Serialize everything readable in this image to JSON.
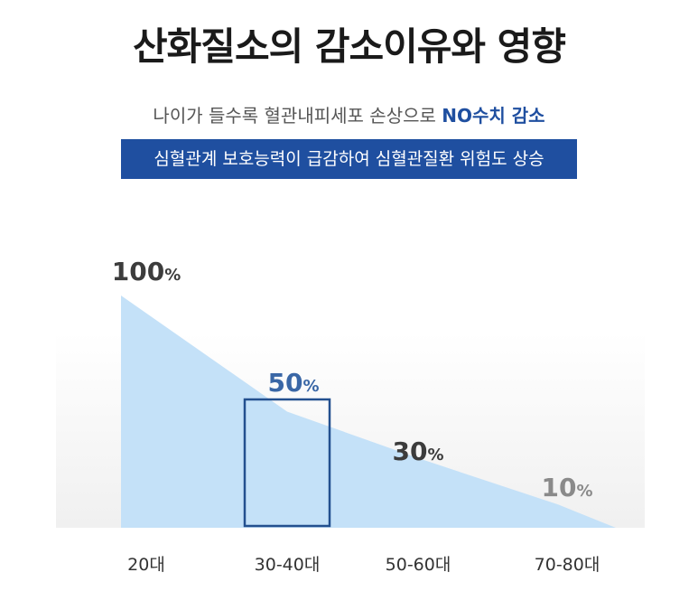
{
  "header": {
    "title": "산화질소의 감소이유와 영향",
    "subtitle_main": "나이가 들수록 혈관내피세포 손상으로 ",
    "subtitle_highlight": "NO수치 감소",
    "banner": "심혈관계 보호능력이 급감하여 심혈관질환 위험도 상승"
  },
  "colors": {
    "title": "#1a1a1a",
    "accent": "#1f4fa0",
    "area_fill": "#c4e1f8",
    "highlight_box": "#23508f",
    "label_dark": "#3c3c3c",
    "label_blue": "#3a67a6",
    "label_gray": "#8a8a8a",
    "background_band": "#f2f2f2"
  },
  "chart_data": {
    "type": "area",
    "categories": [
      "20대",
      "30-40대",
      "50-60대",
      "70-80대"
    ],
    "values": [
      100,
      50,
      30,
      10
    ],
    "value_labels": [
      "100",
      "50",
      "30",
      "10"
    ],
    "value_unit": "%",
    "highlight_category": "30-40대",
    "ylim": [
      0,
      100
    ],
    "grid": false,
    "legend": "none"
  }
}
